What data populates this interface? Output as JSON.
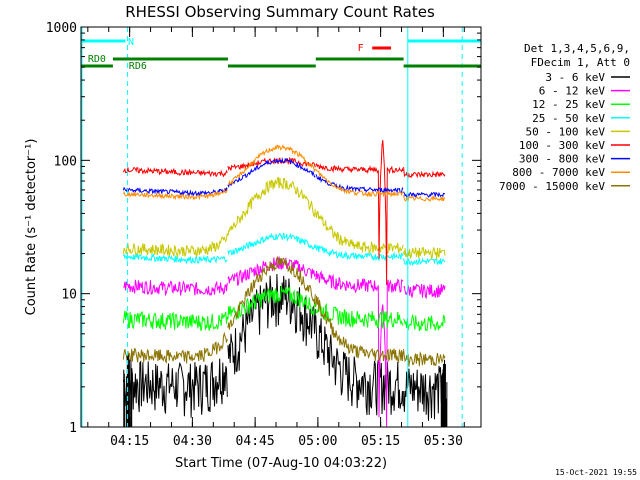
{
  "chart_data": {
    "type": "line",
    "title": "RHESSI Observing Summary Count Rates",
    "xlabel": "Start Time (07-Aug-10 04:03:22)",
    "ylabel": "Count Rate (s⁻¹ detector⁻¹)",
    "y_scale": "log",
    "ylim": [
      1,
      1000
    ],
    "y_ticks": [
      {
        "value": 1,
        "label": "1"
      },
      {
        "value": 10,
        "label": "10"
      },
      {
        "value": 100,
        "label": "100"
      },
      {
        "value": 1000,
        "label": "1000"
      }
    ],
    "x_ticks": [
      "04:15",
      "04:30",
      "04:45",
      "05:00",
      "05:15",
      "05:30"
    ],
    "x_tick_minutes": [
      15,
      30,
      45,
      60,
      75,
      90
    ],
    "xlim_minutes": [
      3.37,
      99.0
    ],
    "legend_title": [
      "Det 1,3,4,5,6,9,",
      "FDecim 1, Att 0"
    ],
    "legend_position": "right",
    "series": [
      {
        "name": "3 - 6 keV",
        "color": "#000000"
      },
      {
        "name": "6 - 12 keV",
        "color": "#ff00ff"
      },
      {
        "name": "12 - 25 keV",
        "color": "#00ff00"
      },
      {
        "name": "25 - 50 keV",
        "color": "#00ffff"
      },
      {
        "name": "50 - 100 keV",
        "color": "#c8c800"
      },
      {
        "name": "100 - 300 keV",
        "color": "#ff0000"
      },
      {
        "name": "300 - 800 keV",
        "color": "#0000ff"
      },
      {
        "name": "800 - 7000 keV",
        "color": "#ff8c00"
      },
      {
        "name": "7000 - 15000 keV",
        "color": "#8b7300"
      }
    ],
    "flags": [
      {
        "label": "N",
        "color": "#00ffff"
      },
      {
        "label": "RD0",
        "color": "#008000"
      },
      {
        "label": "RD6",
        "color": "#008000"
      },
      {
        "label": "F",
        "color": "#ff0000"
      }
    ],
    "timestamp": "15-Oct-2021 19:55"
  }
}
